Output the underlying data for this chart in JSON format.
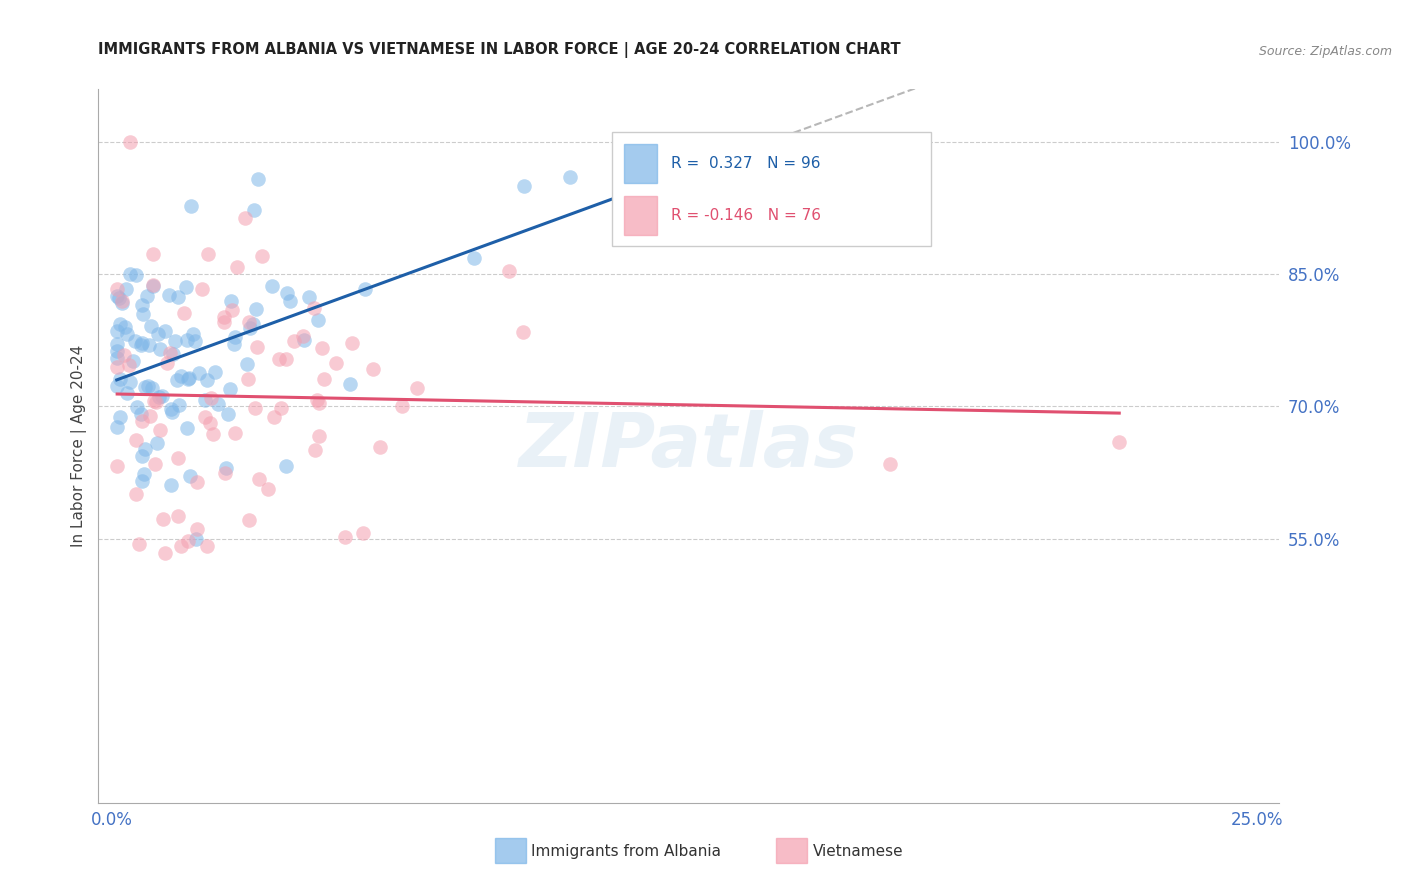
{
  "title": "IMMIGRANTS FROM ALBANIA VS VIETNAMESE IN LABOR FORCE | AGE 20-24 CORRELATION CHART",
  "source": "Source: ZipAtlas.com",
  "ylabel": "In Labor Force | Age 20-24",
  "albania_R": 0.327,
  "albania_N": 96,
  "vietnamese_R": -0.146,
  "vietnamese_N": 76,
  "albania_color": "#7EB6E8",
  "vietnamese_color": "#F4A0B0",
  "albania_line_color": "#1E5FA8",
  "vietnamese_line_color": "#E05070",
  "ytick_vals": [
    0.55,
    0.7,
    0.85,
    1.0
  ],
  "ytick_labels": [
    "55.0%",
    "70.0%",
    "85.0%",
    "100.0%"
  ],
  "xtick_vals": [
    0.0,
    0.25
  ],
  "xtick_labels": [
    "0.0%",
    "25.0%"
  ],
  "xlim": [
    -0.003,
    0.255
  ],
  "ylim": [
    0.25,
    1.06
  ],
  "watermark": "ZIPatlas"
}
